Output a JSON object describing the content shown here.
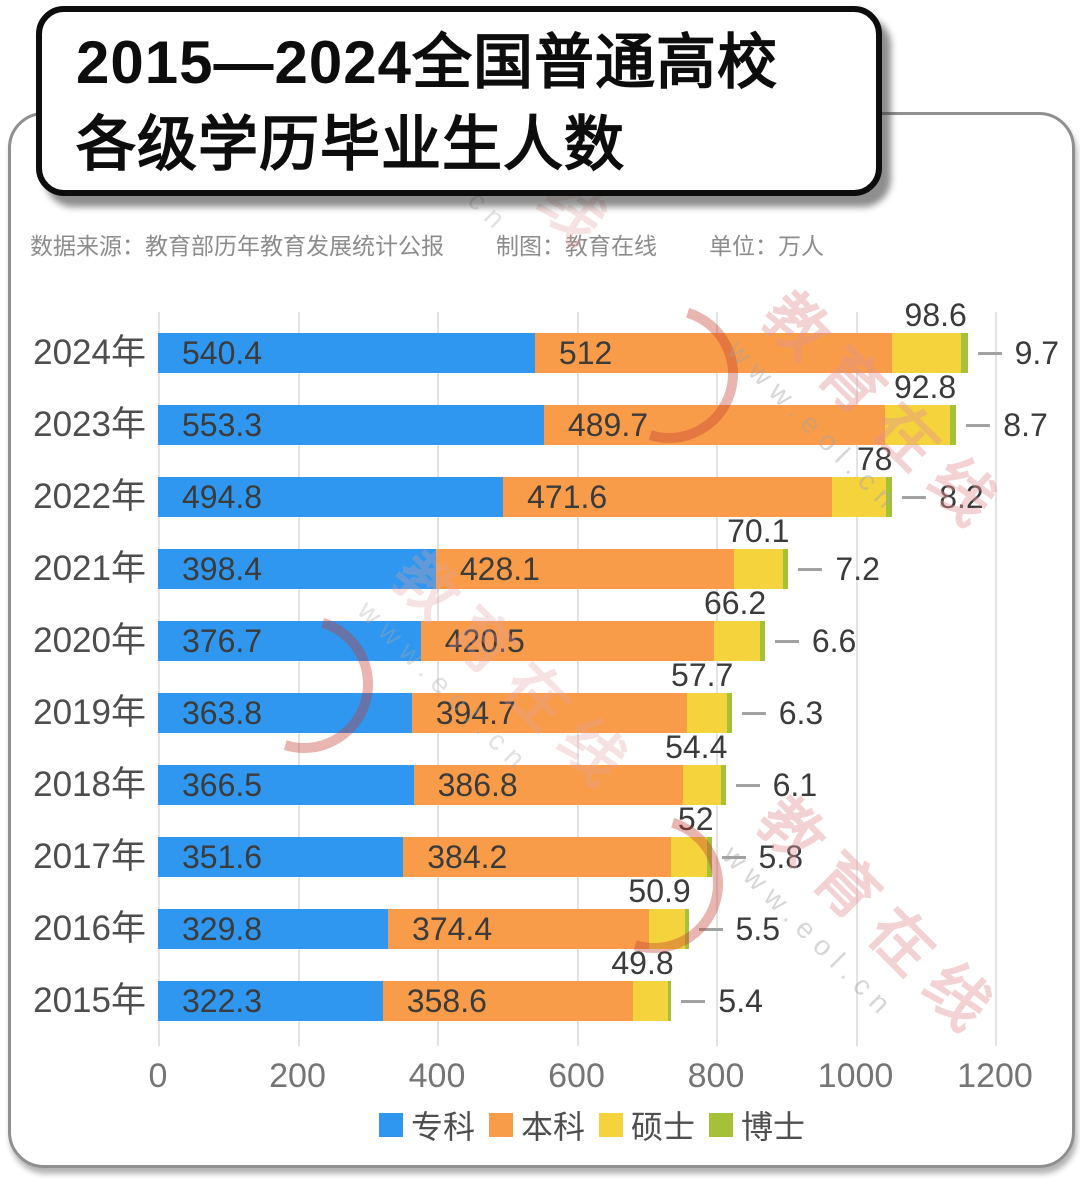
{
  "title": {
    "line1": "2015—2024全国普通高校",
    "line2": "各级学历毕业生人数"
  },
  "meta": {
    "source": "数据来源：教育部历年教育发展统计公报",
    "maker": "制图：教育在线",
    "unit": "单位：万人"
  },
  "watermark": {
    "brand": "教育在线",
    "url": "www.eol.cn"
  },
  "chart_data": {
    "type": "bar",
    "orientation": "horizontal",
    "stacked": true,
    "title": "2015—2024全国普通高校各级学历毕业生人数",
    "unit": "万人",
    "categories": [
      "2024年",
      "2023年",
      "2022年",
      "2021年",
      "2020年",
      "2019年",
      "2018年",
      "2017年",
      "2016年",
      "2015年"
    ],
    "series": [
      {
        "name": "专科",
        "color": "#2f97ef",
        "values": [
          540.4,
          553.3,
          494.8,
          398.4,
          376.7,
          363.8,
          366.5,
          351.6,
          329.8,
          322.3
        ]
      },
      {
        "name": "本科",
        "color": "#f99c49",
        "values": [
          512,
          489.7,
          471.6,
          428.1,
          420.5,
          394.7,
          386.8,
          384.2,
          374.4,
          358.6
        ]
      },
      {
        "name": "硕士",
        "color": "#f4d33c",
        "values": [
          98.6,
          92.8,
          78,
          70.1,
          66.2,
          57.7,
          54.4,
          52,
          50.9,
          49.8
        ]
      },
      {
        "name": "博士",
        "color": "#a5c138",
        "values": [
          9.7,
          8.7,
          8.2,
          7.2,
          6.6,
          6.3,
          6.1,
          5.8,
          5.5,
          5.4
        ]
      }
    ],
    "x_ticks": [
      0,
      200,
      400,
      600,
      800,
      1000,
      1200
    ],
    "xlim": [
      0,
      1200
    ],
    "grid": true,
    "grid_axis": "x",
    "legend_position": "bottom",
    "value_labels": "shown for every segment; 硕士 above bar end, 博士 right of bar with dash"
  }
}
